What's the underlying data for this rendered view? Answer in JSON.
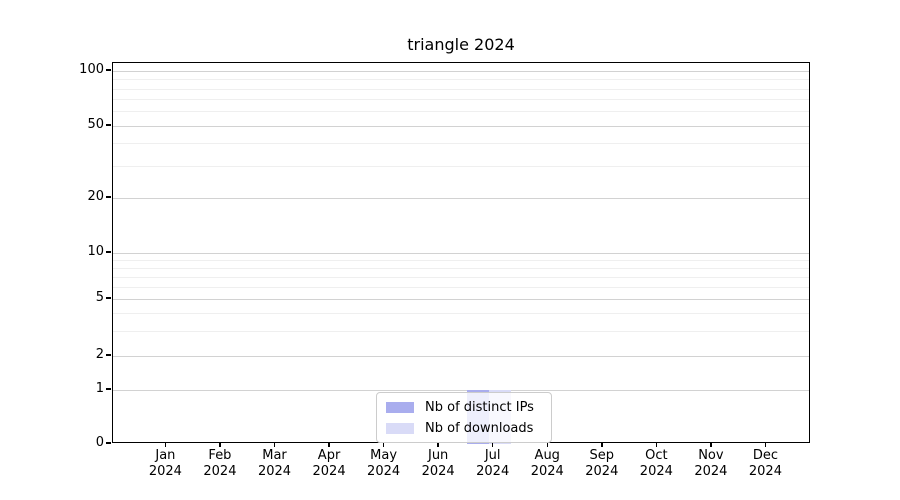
{
  "title": "triangle 2024",
  "chart_data": {
    "type": "bar",
    "title": "triangle 2024",
    "categories": [
      "Jan 2024",
      "Feb 2024",
      "Mar 2024",
      "Apr 2024",
      "May 2024",
      "Jun 2024",
      "Jul 2024",
      "Aug 2024",
      "Sep 2024",
      "Oct 2024",
      "Nov 2024",
      "Dec 2024"
    ],
    "series": [
      {
        "name": "Nb of distinct IPs",
        "color": "#a9adee",
        "values": [
          0,
          0,
          0,
          0,
          0,
          0,
          1,
          0,
          0,
          0,
          0,
          0
        ]
      },
      {
        "name": "Nb of downloads",
        "color": "#d9dbf7",
        "values": [
          0,
          0,
          0,
          0,
          0,
          0,
          1,
          0,
          0,
          0,
          0,
          0
        ]
      }
    ],
    "yticks": [
      100,
      50,
      20,
      10,
      5,
      2,
      1,
      0
    ],
    "ylim": [
      0,
      100
    ],
    "yscale": "log-like with 0 baseline",
    "grid": "horizontal major and minor gridlines",
    "legend": {
      "position": "lower center",
      "entries": [
        "Nb of distinct IPs",
        "Nb of downloads"
      ]
    }
  }
}
